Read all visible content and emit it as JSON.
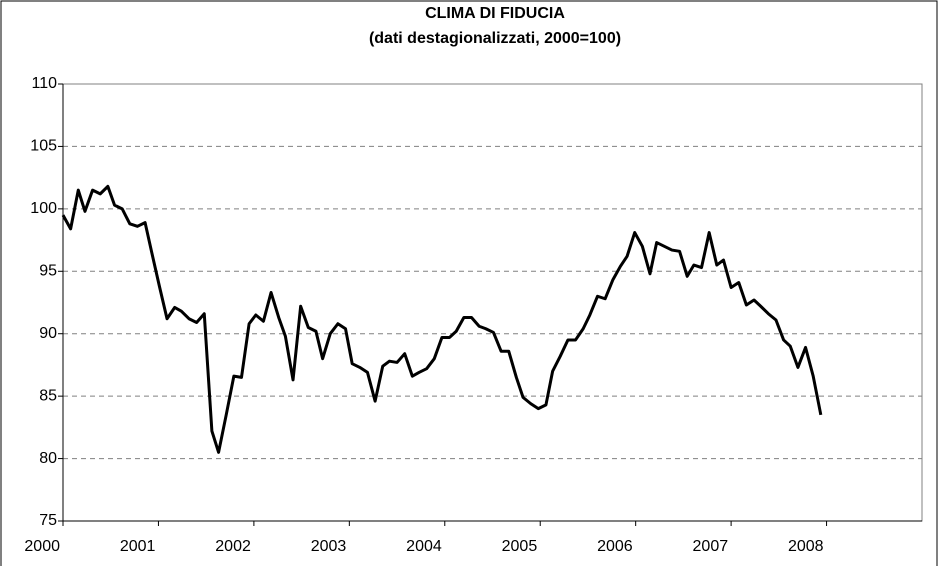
{
  "chart_data": {
    "type": "line",
    "title": "CLIMA DI FIDUCIA",
    "subtitle": "(dati destagionalizzati, 2000=100)",
    "x": [
      2000.0,
      2000.08,
      2000.16,
      2000.23,
      2000.31,
      2000.39,
      2000.47,
      2000.54,
      2000.62,
      2000.7,
      2000.78,
      2000.86,
      2000.93,
      2001.01,
      2001.09,
      2001.17,
      2001.24,
      2001.32,
      2001.4,
      2001.48,
      2001.56,
      2001.63,
      2001.71,
      2001.79,
      2001.87,
      2001.95,
      2002.02,
      2002.1,
      2002.18,
      2002.26,
      2002.33,
      2002.41,
      2002.49,
      2002.57,
      2002.65,
      2002.72,
      2002.8,
      2002.88,
      2002.96,
      2003.03,
      2003.11,
      2003.19,
      2003.27,
      2003.35,
      2003.42,
      2003.5,
      2003.58,
      2003.66,
      2003.73,
      2003.81,
      2003.89,
      2003.97,
      2004.05,
      2004.12,
      2004.2,
      2004.28,
      2004.36,
      2004.43,
      2004.51,
      2004.59,
      2004.67,
      2004.75,
      2004.82,
      2004.9,
      2004.98,
      2005.06,
      2005.13,
      2005.21,
      2005.29,
      2005.37,
      2005.45,
      2005.52,
      2005.6,
      2005.68,
      2005.76,
      2005.84,
      2005.91,
      2005.99,
      2006.07,
      2006.15,
      2006.22,
      2006.3,
      2006.38,
      2006.46,
      2006.54,
      2006.61,
      2006.69,
      2006.77,
      2006.85,
      2006.92,
      2007.0,
      2007.08,
      2007.16,
      2007.24,
      2007.31,
      2007.39,
      2007.47,
      2007.55,
      2007.62,
      2007.7,
      2007.78,
      2007.86,
      2007.94
    ],
    "series": [
      {
        "color": "#000000",
        "values": [
          99.5,
          98.4,
          101.5,
          99.8,
          101.5,
          101.2,
          101.8,
          100.3,
          100.0,
          98.8,
          98.6,
          98.9,
          96.5,
          93.8,
          91.2,
          92.1,
          91.8,
          91.2,
          90.9,
          91.6,
          82.2,
          80.5,
          83.5,
          86.6,
          86.5,
          90.8,
          91.5,
          91.0,
          93.3,
          91.3,
          89.8,
          86.3,
          92.2,
          90.5,
          90.2,
          88.0,
          90.0,
          90.8,
          90.4,
          87.6,
          87.3,
          86.9,
          84.6,
          87.4,
          87.8,
          87.7,
          88.4,
          86.6,
          86.9,
          87.2,
          88.0,
          89.7,
          89.7,
          90.2,
          91.3,
          91.3,
          90.6,
          90.4,
          90.1,
          88.6,
          88.6,
          86.5,
          84.9,
          84.4,
          84.0,
          84.3,
          87.0,
          88.2,
          89.5,
          89.5,
          90.4,
          91.5,
          93.0,
          92.8,
          94.3,
          95.4,
          96.2,
          98.1,
          97.0,
          94.8,
          97.3,
          97.0,
          96.7,
          96.6,
          94.6,
          95.5,
          95.3,
          98.1,
          95.5,
          95.9,
          93.7,
          94.1,
          92.3,
          92.7,
          92.2,
          91.6,
          91.1,
          89.5,
          89.0,
          87.3,
          88.9,
          86.6,
          83.5
        ]
      }
    ],
    "xlim": [
      2000,
      2009
    ],
    "xticks": [
      2000,
      2001,
      2002,
      2003,
      2004,
      2005,
      2006,
      2007,
      2008
    ],
    "ylim": [
      75,
      110
    ],
    "yticks": [
      75,
      80,
      85,
      90,
      95,
      100,
      105,
      110
    ],
    "grid": true
  }
}
